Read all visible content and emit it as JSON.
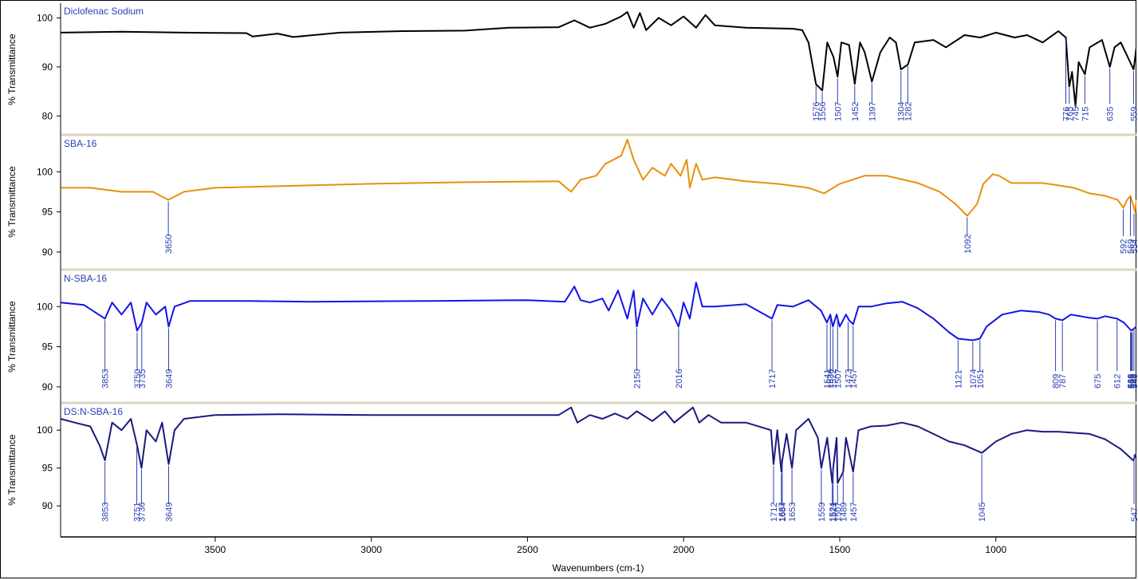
{
  "chart_data": {
    "type": "line",
    "xlabel": "Wavenumbers (cm-1)",
    "x_ticks": [
      3500,
      3000,
      2500,
      2000,
      1500,
      1000
    ],
    "xlim": [
      3995,
      550
    ],
    "x_reversed": true,
    "grid": false,
    "label_color": "#2b3fb0",
    "panels": [
      {
        "name": "Diclofenac Sodium",
        "color": "#000000",
        "ylabel": "% Transmittance",
        "ylim": [
          76,
          103
        ],
        "y_ticks": [
          80,
          90,
          100
        ],
        "points": [
          [
            3995,
            97
          ],
          [
            3800,
            97.2
          ],
          [
            3600,
            97
          ],
          [
            3400,
            96.9
          ],
          [
            3380,
            96.2
          ],
          [
            3300,
            96.8
          ],
          [
            3250,
            96.1
          ],
          [
            3100,
            97
          ],
          [
            2900,
            97.3
          ],
          [
            2700,
            97.4
          ],
          [
            2560,
            98
          ],
          [
            2400,
            98.1
          ],
          [
            2350,
            99.5
          ],
          [
            2300,
            98
          ],
          [
            2250,
            98.8
          ],
          [
            2200,
            100.3
          ],
          [
            2180,
            101.2
          ],
          [
            2160,
            98
          ],
          [
            2140,
            101
          ],
          [
            2120,
            97.5
          ],
          [
            2080,
            100
          ],
          [
            2040,
            98.5
          ],
          [
            2000,
            100.3
          ],
          [
            1960,
            98
          ],
          [
            1930,
            100.6
          ],
          [
            1900,
            98.5
          ],
          [
            1800,
            98
          ],
          [
            1650,
            97.8
          ],
          [
            1620,
            97.5
          ],
          [
            1600,
            95
          ],
          [
            1576,
            86.5
          ],
          [
            1556,
            85.2
          ],
          [
            1540,
            95
          ],
          [
            1520,
            92
          ],
          [
            1507,
            88
          ],
          [
            1495,
            95
          ],
          [
            1470,
            94.5
          ],
          [
            1452,
            86.5
          ],
          [
            1435,
            95
          ],
          [
            1420,
            93
          ],
          [
            1397,
            87
          ],
          [
            1370,
            93
          ],
          [
            1340,
            96
          ],
          [
            1320,
            95
          ],
          [
            1304,
            89.5
          ],
          [
            1282,
            90.5
          ],
          [
            1260,
            95
          ],
          [
            1200,
            95.5
          ],
          [
            1160,
            94
          ],
          [
            1100,
            96.5
          ],
          [
            1050,
            96
          ],
          [
            1000,
            97
          ],
          [
            940,
            96
          ],
          [
            900,
            96.5
          ],
          [
            850,
            95
          ],
          [
            800,
            97.3
          ],
          [
            776,
            96
          ],
          [
            765,
            86
          ],
          [
            756,
            89
          ],
          [
            745,
            82
          ],
          [
            735,
            91
          ],
          [
            715,
            88.5
          ],
          [
            700,
            94
          ],
          [
            660,
            95.5
          ],
          [
            635,
            90
          ],
          [
            620,
            94
          ],
          [
            600,
            95
          ],
          [
            559,
            89.5
          ],
          [
            550,
            94
          ]
        ],
        "labels": [
          "1576",
          "1556",
          "1507",
          "1452",
          "1397",
          "1304",
          "1282",
          "776",
          "765",
          "745",
          "715",
          "635",
          "559"
        ]
      },
      {
        "name": "SBA-16",
        "color": "#e8900c",
        "ylabel": "% Transmittance",
        "ylim": [
          88,
          104.5
        ],
        "y_ticks": [
          90,
          95,
          100
        ],
        "points": [
          [
            3995,
            98
          ],
          [
            3900,
            98
          ],
          [
            3800,
            97.5
          ],
          [
            3700,
            97.5
          ],
          [
            3650,
            96.5
          ],
          [
            3600,
            97.5
          ],
          [
            3500,
            98
          ],
          [
            3300,
            98.2
          ],
          [
            3000,
            98.5
          ],
          [
            2700,
            98.7
          ],
          [
            2400,
            98.8
          ],
          [
            2360,
            97.5
          ],
          [
            2330,
            99
          ],
          [
            2280,
            99.5
          ],
          [
            2250,
            101
          ],
          [
            2200,
            102
          ],
          [
            2180,
            104
          ],
          [
            2160,
            101.5
          ],
          [
            2130,
            99
          ],
          [
            2100,
            100.5
          ],
          [
            2060,
            99.5
          ],
          [
            2040,
            101
          ],
          [
            2010,
            99.5
          ],
          [
            1990,
            101.5
          ],
          [
            1980,
            98
          ],
          [
            1960,
            101
          ],
          [
            1940,
            99
          ],
          [
            1900,
            99.3
          ],
          [
            1800,
            98.8
          ],
          [
            1700,
            98.5
          ],
          [
            1600,
            98
          ],
          [
            1550,
            97.3
          ],
          [
            1500,
            98.5
          ],
          [
            1420,
            99.5
          ],
          [
            1350,
            99.5
          ],
          [
            1250,
            98.6
          ],
          [
            1180,
            97.5
          ],
          [
            1130,
            96
          ],
          [
            1092,
            94.5
          ],
          [
            1060,
            96
          ],
          [
            1040,
            98.5
          ],
          [
            1010,
            99.7
          ],
          [
            990,
            99.5
          ],
          [
            950,
            98.6
          ],
          [
            850,
            98.6
          ],
          [
            800,
            98.3
          ],
          [
            750,
            98
          ],
          [
            700,
            97.3
          ],
          [
            650,
            97
          ],
          [
            610,
            96.5
          ],
          [
            592,
            95.5
          ],
          [
            580,
            96.5
          ],
          [
            569,
            97
          ],
          [
            554,
            95
          ],
          [
            550,
            96.5
          ]
        ],
        "labels": [
          "3650",
          "1092",
          "569",
          "554",
          "592"
        ]
      },
      {
        "name": "N-SBA-16",
        "color": "#1414e6",
        "ylabel": "% Transmittance",
        "ylim": [
          88,
          104.5
        ],
        "y_ticks": [
          90,
          95,
          100
        ],
        "points": [
          [
            3995,
            100.5
          ],
          [
            3920,
            100.2
          ],
          [
            3853,
            98.5
          ],
          [
            3830,
            100.5
          ],
          [
            3800,
            99
          ],
          [
            3770,
            100.5
          ],
          [
            3750,
            97
          ],
          [
            3735,
            98
          ],
          [
            3720,
            100.5
          ],
          [
            3690,
            99
          ],
          [
            3660,
            100
          ],
          [
            3649,
            97.5
          ],
          [
            3630,
            100
          ],
          [
            3580,
            100.7
          ],
          [
            3400,
            100.7
          ],
          [
            3200,
            100.6
          ],
          [
            2800,
            100.7
          ],
          [
            2500,
            100.8
          ],
          [
            2380,
            100.6
          ],
          [
            2350,
            102.5
          ],
          [
            2330,
            100.8
          ],
          [
            2300,
            100.5
          ],
          [
            2260,
            101
          ],
          [
            2240,
            99.5
          ],
          [
            2210,
            102
          ],
          [
            2180,
            98.5
          ],
          [
            2160,
            102
          ],
          [
            2150,
            97.5
          ],
          [
            2130,
            101
          ],
          [
            2100,
            99
          ],
          [
            2070,
            101
          ],
          [
            2040,
            99.5
          ],
          [
            2016,
            97.5
          ],
          [
            2000,
            100.5
          ],
          [
            1980,
            98.5
          ],
          [
            1960,
            103
          ],
          [
            1940,
            100
          ],
          [
            1900,
            100
          ],
          [
            1800,
            100.3
          ],
          [
            1717,
            98.5
          ],
          [
            1700,
            100.2
          ],
          [
            1650,
            100
          ],
          [
            1600,
            100.8
          ],
          [
            1560,
            99.5
          ],
          [
            1541,
            98
          ],
          [
            1530,
            99
          ],
          [
            1522,
            97.5
          ],
          [
            1510,
            99
          ],
          [
            1500,
            97.5
          ],
          [
            1480,
            99
          ],
          [
            1470,
            98.3
          ],
          [
            1457,
            97.8
          ],
          [
            1440,
            100
          ],
          [
            1400,
            100
          ],
          [
            1350,
            100.4
          ],
          [
            1300,
            100.6
          ],
          [
            1250,
            99.8
          ],
          [
            1200,
            98.5
          ],
          [
            1150,
            96.8
          ],
          [
            1121,
            96
          ],
          [
            1074,
            95.8
          ],
          [
            1051,
            96
          ],
          [
            1030,
            97.5
          ],
          [
            980,
            99
          ],
          [
            920,
            99.5
          ],
          [
            860,
            99.3
          ],
          [
            830,
            99
          ],
          [
            809,
            98.5
          ],
          [
            787,
            98.3
          ],
          [
            760,
            99
          ],
          [
            700,
            98.6
          ],
          [
            675,
            98.5
          ],
          [
            650,
            98.8
          ],
          [
            612,
            98.5
          ],
          [
            590,
            98
          ],
          [
            566,
            97
          ],
          [
            550,
            97.5
          ]
        ],
        "labels": [
          "3853",
          "3750",
          "3735",
          "3649",
          "2150",
          "2016",
          "1717",
          "1541",
          "1530",
          "1522",
          "1507",
          "1473",
          "1457",
          "1121",
          "1074",
          "1051",
          "809",
          "787",
          "675",
          "612",
          "566",
          "566",
          "569",
          "563",
          "546"
        ]
      },
      {
        "name": "DS:N-SBA-16",
        "color": "#1a1a80",
        "ylabel": "% Transmittance",
        "ylim": [
          86,
          103.5
        ],
        "y_ticks": [
          90,
          95,
          100
        ],
        "points": [
          [
            3995,
            101.5
          ],
          [
            3950,
            101
          ],
          [
            3900,
            100.5
          ],
          [
            3870,
            98
          ],
          [
            3853,
            96
          ],
          [
            3830,
            101
          ],
          [
            3800,
            100
          ],
          [
            3770,
            101.5
          ],
          [
            3750,
            98
          ],
          [
            3736,
            95
          ],
          [
            3720,
            100
          ],
          [
            3690,
            98.5
          ],
          [
            3670,
            101
          ],
          [
            3649,
            95.5
          ],
          [
            3630,
            100
          ],
          [
            3600,
            101.5
          ],
          [
            3500,
            102
          ],
          [
            3300,
            102.1
          ],
          [
            3000,
            102
          ],
          [
            2700,
            102
          ],
          [
            2400,
            102
          ],
          [
            2360,
            103
          ],
          [
            2340,
            101
          ],
          [
            2300,
            102
          ],
          [
            2260,
            101.5
          ],
          [
            2220,
            102.2
          ],
          [
            2180,
            101.5
          ],
          [
            2150,
            102.5
          ],
          [
            2100,
            101.2
          ],
          [
            2060,
            102.5
          ],
          [
            2030,
            101
          ],
          [
            2000,
            102
          ],
          [
            1970,
            103
          ],
          [
            1950,
            101
          ],
          [
            1920,
            102
          ],
          [
            1880,
            101
          ],
          [
            1800,
            101
          ],
          [
            1720,
            100
          ],
          [
            1712,
            95.5
          ],
          [
            1700,
            100
          ],
          [
            1687,
            94.5
          ],
          [
            1684,
            96
          ],
          [
            1670,
            99.5
          ],
          [
            1653,
            95
          ],
          [
            1640,
            100
          ],
          [
            1600,
            101.5
          ],
          [
            1570,
            99
          ],
          [
            1559,
            95
          ],
          [
            1540,
            99
          ],
          [
            1524,
            93
          ],
          [
            1521,
            95
          ],
          [
            1510,
            99
          ],
          [
            1507,
            93
          ],
          [
            1489,
            94.5
          ],
          [
            1480,
            99
          ],
          [
            1457,
            94.5
          ],
          [
            1440,
            100
          ],
          [
            1400,
            100.5
          ],
          [
            1350,
            100.6
          ],
          [
            1300,
            101
          ],
          [
            1250,
            100.5
          ],
          [
            1200,
            99.5
          ],
          [
            1150,
            98.5
          ],
          [
            1100,
            98
          ],
          [
            1045,
            97
          ],
          [
            1000,
            98.5
          ],
          [
            950,
            99.5
          ],
          [
            900,
            100
          ],
          [
            850,
            99.8
          ],
          [
            800,
            99.8
          ],
          [
            700,
            99.5
          ],
          [
            650,
            98.8
          ],
          [
            600,
            97.5
          ],
          [
            560,
            96
          ],
          [
            550,
            97
          ]
        ],
        "labels": [
          "3853",
          "3751",
          "3736",
          "3649",
          "1712",
          "1687",
          "1684",
          "1653",
          "1559",
          "1524",
          "1521",
          "1507",
          "1489",
          "1457",
          "1045",
          "547"
        ]
      }
    ]
  }
}
